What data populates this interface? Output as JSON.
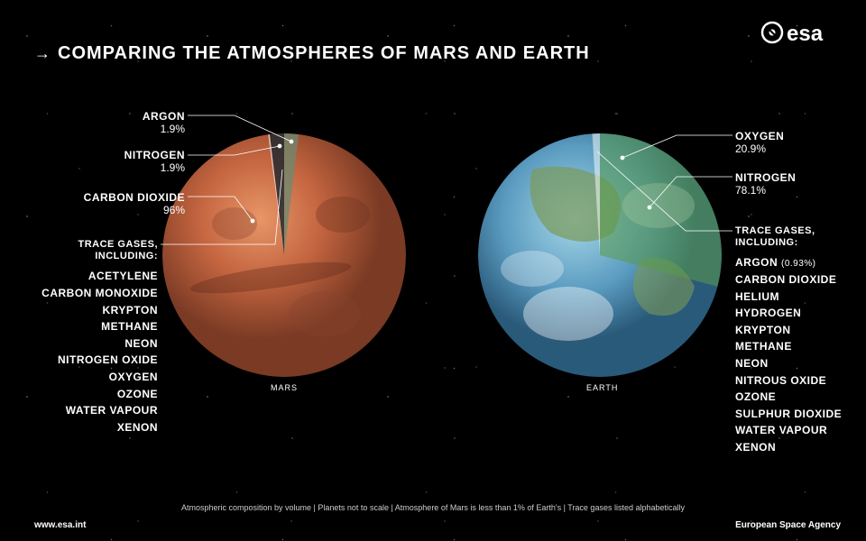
{
  "title": "COMPARING THE ATMOSPHERES OF MARS AND EARTH",
  "logo_text": "esa",
  "mars": {
    "name": "MARS",
    "base_color": "#b85638",
    "highlight_color": "#d97a52",
    "shadow_color": "#6b3320",
    "components": [
      {
        "name": "ARGON",
        "pct": "1.9%",
        "color": "#6b8a72",
        "start": 0,
        "end": 6.84
      },
      {
        "name": "NITROGEN",
        "pct": "1.9%",
        "color": "#1a2530",
        "start": 353.16,
        "end": 360
      },
      {
        "name": "CARBON DIOXIDE",
        "pct": "96%",
        "start": 6.84,
        "end": 352.44
      }
    ],
    "trace_slice": {
      "start": 352.44,
      "end": 353.16
    },
    "trace_header": "TRACE GASES, INCLUDING:",
    "trace_gases": [
      "ACETYLENE",
      "CARBON MONOXIDE",
      "KRYPTON",
      "METHANE",
      "NEON",
      "NITROGEN OXIDE",
      "OXYGEN",
      "OZONE",
      "WATER VAPOUR",
      "XENON"
    ]
  },
  "earth": {
    "name": "EARTH",
    "ocean_color": "#4a8db5",
    "land_color": "#6b8a5a",
    "cloud_color": "#e8e8e8",
    "components": [
      {
        "name": "OXYGEN",
        "pct": "20.9%",
        "color": "#5a9b4a",
        "start": 0,
        "end": 75.24
      },
      {
        "name": "NITROGEN",
        "pct": "78.1%",
        "color": "#7cc8e8",
        "start": 75.24,
        "end": 356.4
      }
    ],
    "trace_slice": {
      "start": 356.4,
      "end": 360
    },
    "trace_header": "TRACE GASES, INCLUDING:",
    "trace_gases": [
      "ARGON (0.93%)",
      "CARBON DIOXIDE",
      "HELIUM",
      "HYDROGEN",
      "KRYPTON",
      "METHANE",
      "NEON",
      "NITROUS OXIDE",
      "OZONE",
      "SULPHUR DIOXIDE",
      "WATER VAPOUR",
      "XENON"
    ]
  },
  "caption": "Atmospheric composition by volume | Planets not to scale | Atmosphere of Mars is less than 1% of Earth's | Trace gases listed alphabetically",
  "website": "www.esa.int",
  "agency": "European Space Agency"
}
